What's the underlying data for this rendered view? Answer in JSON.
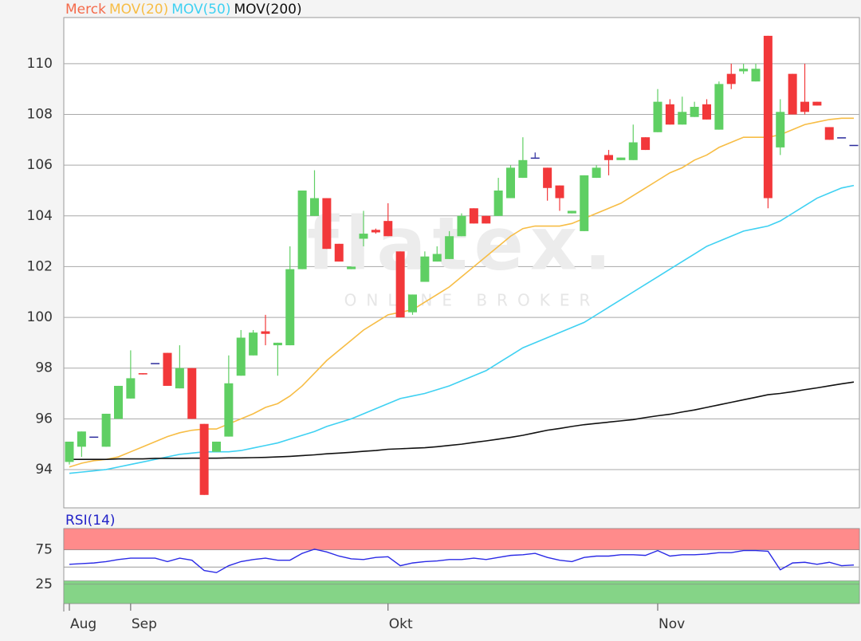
{
  "chart_data": [
    {
      "type": "candlestick",
      "legend_title": {
        "text": "Merck",
        "color": "#f46a4a"
      },
      "categories": [
        "Aug",
        null,
        null,
        null,
        null,
        "Sep",
        null,
        null,
        null,
        null,
        null,
        null,
        null,
        null,
        null,
        null,
        null,
        null,
        null,
        null,
        null,
        null,
        null,
        null,
        null,
        null,
        "Okt",
        null,
        null,
        null,
        null,
        null,
        null,
        null,
        null,
        null,
        null,
        null,
        null,
        null,
        null,
        null,
        null,
        null,
        null,
        null,
        null,
        null,
        "Nov",
        null,
        null,
        null,
        null,
        null,
        null,
        null,
        null,
        null,
        null,
        null,
        null,
        null,
        null,
        null,
        null
      ],
      "up_color": "#5fcf63",
      "down_color": "#f2383a",
      "flat_color": "#2b2b9c",
      "open": [
        94.3,
        94.9,
        95.3,
        94.9,
        96.0,
        96.8,
        97.8,
        98.2,
        98.6,
        97.2,
        98.0,
        95.8,
        94.7,
        95.3,
        97.7,
        98.5,
        99.45,
        98.9,
        98.9,
        101.9,
        104.0,
        104.7,
        102.9,
        101.9,
        103.1,
        103.45,
        103.8,
        102.6,
        100.2,
        101.4,
        102.2,
        102.3,
        103.2,
        104.3,
        104.0,
        104.0,
        104.7,
        105.5,
        106.3,
        105.9,
        105.2,
        104.1,
        103.4,
        105.5,
        106.4,
        106.2,
        106.2,
        107.1,
        107.3,
        108.4,
        107.6,
        107.9,
        108.4,
        107.4,
        109.6,
        109.7,
        109.3,
        111.1,
        106.7,
        109.6,
        108.5,
        108.5,
        107.5,
        107.1,
        106.8
      ],
      "high": [
        95.1,
        95.5,
        95.3,
        96.2,
        97.3,
        98.7,
        97.8,
        98.2,
        98.6,
        98.9,
        98.0,
        95.8,
        95.1,
        98.5,
        99.5,
        99.5,
        100.1,
        99.0,
        102.8,
        105.0,
        105.8,
        104.7,
        102.9,
        102.0,
        104.2,
        103.5,
        104.5,
        102.6,
        100.9,
        102.6,
        102.8,
        103.4,
        104.1,
        104.3,
        104.0,
        105.5,
        106.0,
        107.1,
        106.5,
        105.9,
        105.2,
        104.2,
        105.6,
        106.0,
        106.6,
        106.3,
        107.6,
        107.1,
        109.0,
        108.6,
        108.7,
        108.5,
        108.6,
        109.3,
        110.0,
        110.0,
        110.0,
        111.1,
        108.6,
        109.6,
        110.0,
        108.5,
        107.5,
        107.1,
        106.8
      ],
      "low": [
        94.2,
        94.5,
        95.3,
        94.9,
        96.0,
        96.8,
        97.75,
        98.2,
        97.3,
        97.2,
        96.0,
        93.0,
        94.7,
        95.3,
        97.7,
        98.5,
        98.9,
        97.7,
        98.9,
        101.9,
        104.0,
        102.7,
        102.2,
        101.9,
        102.8,
        103.3,
        103.2,
        100.0,
        100.1,
        101.4,
        102.2,
        102.3,
        103.2,
        103.7,
        103.7,
        104.0,
        104.7,
        105.5,
        106.3,
        104.6,
        104.2,
        104.1,
        103.4,
        105.5,
        105.6,
        106.2,
        106.2,
        106.6,
        107.3,
        107.6,
        107.6,
        107.9,
        107.8,
        107.4,
        109.0,
        109.6,
        109.3,
        104.3,
        106.4,
        108.0,
        108.0,
        108.35,
        107.0,
        107.1,
        106.8
      ],
      "close": [
        95.1,
        95.5,
        95.3,
        96.2,
        97.3,
        97.6,
        97.75,
        98.2,
        97.3,
        98.0,
        96.0,
        93.0,
        95.1,
        97.4,
        99.2,
        99.4,
        99.35,
        99.0,
        101.9,
        105.0,
        104.7,
        102.7,
        102.2,
        102.0,
        103.3,
        103.35,
        103.2,
        100.0,
        100.9,
        102.4,
        102.5,
        103.2,
        104.0,
        103.7,
        103.7,
        105.0,
        105.9,
        106.2,
        106.3,
        105.1,
        104.7,
        104.2,
        105.6,
        105.9,
        106.2,
        106.3,
        106.9,
        106.6,
        108.5,
        107.6,
        108.1,
        108.3,
        107.8,
        109.2,
        109.2,
        109.8,
        109.8,
        104.7,
        108.1,
        108.0,
        108.1,
        108.35,
        107.0,
        107.1,
        106.8
      ],
      "series": [
        {
          "name": "MOV(20)",
          "color": "#f7bd45",
          "values": [
            94.1,
            94.25,
            94.35,
            94.4,
            94.5,
            94.7,
            94.9,
            95.1,
            95.3,
            95.45,
            95.55,
            95.6,
            95.6,
            95.8,
            96.0,
            96.2,
            96.45,
            96.6,
            96.9,
            97.3,
            97.8,
            98.3,
            98.7,
            99.1,
            99.5,
            99.8,
            100.1,
            100.2,
            100.3,
            100.6,
            100.9,
            101.2,
            101.6,
            102.0,
            102.4,
            102.8,
            103.2,
            103.5,
            103.6,
            103.6,
            103.6,
            103.7,
            103.9,
            104.1,
            104.3,
            104.5,
            104.8,
            105.1,
            105.4,
            105.7,
            105.9,
            106.2,
            106.4,
            106.7,
            106.9,
            107.1,
            107.1,
            107.1,
            107.2,
            107.4,
            107.6,
            107.7,
            107.8,
            107.85,
            107.85
          ]
        },
        {
          "name": "MOV(50)",
          "color": "#3fd1f2",
          "values": [
            93.85,
            93.9,
            93.95,
            94.0,
            94.1,
            94.2,
            94.3,
            94.4,
            94.5,
            94.6,
            94.65,
            94.7,
            94.7,
            94.7,
            94.75,
            94.85,
            94.95,
            95.05,
            95.2,
            95.35,
            95.5,
            95.7,
            95.85,
            96.0,
            96.2,
            96.4,
            96.6,
            96.8,
            96.9,
            97.0,
            97.15,
            97.3,
            97.5,
            97.7,
            97.9,
            98.2,
            98.5,
            98.8,
            99.0,
            99.2,
            99.4,
            99.6,
            99.8,
            100.1,
            100.4,
            100.7,
            101.0,
            101.3,
            101.6,
            101.9,
            102.2,
            102.5,
            102.8,
            103.0,
            103.2,
            103.4,
            103.5,
            103.6,
            103.8,
            104.1,
            104.4,
            104.7,
            104.9,
            105.1,
            105.2
          ]
        },
        {
          "name": "MOV(200)",
          "color": "#111111",
          "values": [
            94.4,
            94.4,
            94.4,
            94.4,
            94.42,
            94.42,
            94.42,
            94.44,
            94.44,
            94.44,
            94.45,
            94.45,
            94.45,
            94.46,
            94.46,
            94.47,
            94.48,
            94.5,
            94.52,
            94.55,
            94.58,
            94.62,
            94.65,
            94.68,
            94.72,
            94.75,
            94.8,
            94.82,
            94.84,
            94.86,
            94.9,
            94.95,
            95.0,
            95.07,
            95.13,
            95.2,
            95.27,
            95.35,
            95.45,
            95.55,
            95.62,
            95.7,
            95.77,
            95.82,
            95.87,
            95.92,
            95.97,
            96.05,
            96.12,
            96.18,
            96.27,
            96.35,
            96.45,
            96.55,
            96.65,
            96.75,
            96.85,
            96.95,
            97.0,
            97.07,
            97.15,
            97.22,
            97.3,
            97.38,
            97.45
          ]
        }
      ],
      "ylim": [
        92.49,
        111.82
      ],
      "yticks": [
        94,
        96,
        98,
        100,
        102,
        104,
        106,
        108,
        110
      ],
      "grid": true,
      "watermark": {
        "text": "flatex.",
        "subtext": "ONLINE BROKER"
      }
    },
    {
      "type": "line",
      "title": "RSI(14)",
      "title_color": "#2323c8",
      "color": "#2a2ae6",
      "values": [
        54,
        55,
        56,
        58,
        61,
        63,
        63,
        63,
        58,
        63,
        60,
        45,
        42,
        52,
        58,
        61,
        63,
        60,
        60,
        70,
        76,
        72,
        66,
        62,
        61,
        64,
        65,
        52,
        56,
        58,
        59,
        61,
        61,
        63,
        61,
        64,
        67,
        68,
        70,
        64,
        60,
        58,
        64,
        66,
        66,
        68,
        68,
        67,
        74,
        66,
        68,
        68,
        69,
        71,
        71,
        74,
        74,
        73,
        46,
        56,
        57,
        54,
        57,
        52,
        53
      ],
      "ylim": [
        -3,
        106
      ],
      "yticks": [
        25,
        75
      ],
      "midline": 50,
      "bands": [
        {
          "from": 75,
          "to": 106,
          "color": "#ff8b8b"
        },
        {
          "from": -3,
          "to": 30,
          "color": "#85d487"
        }
      ]
    }
  ]
}
